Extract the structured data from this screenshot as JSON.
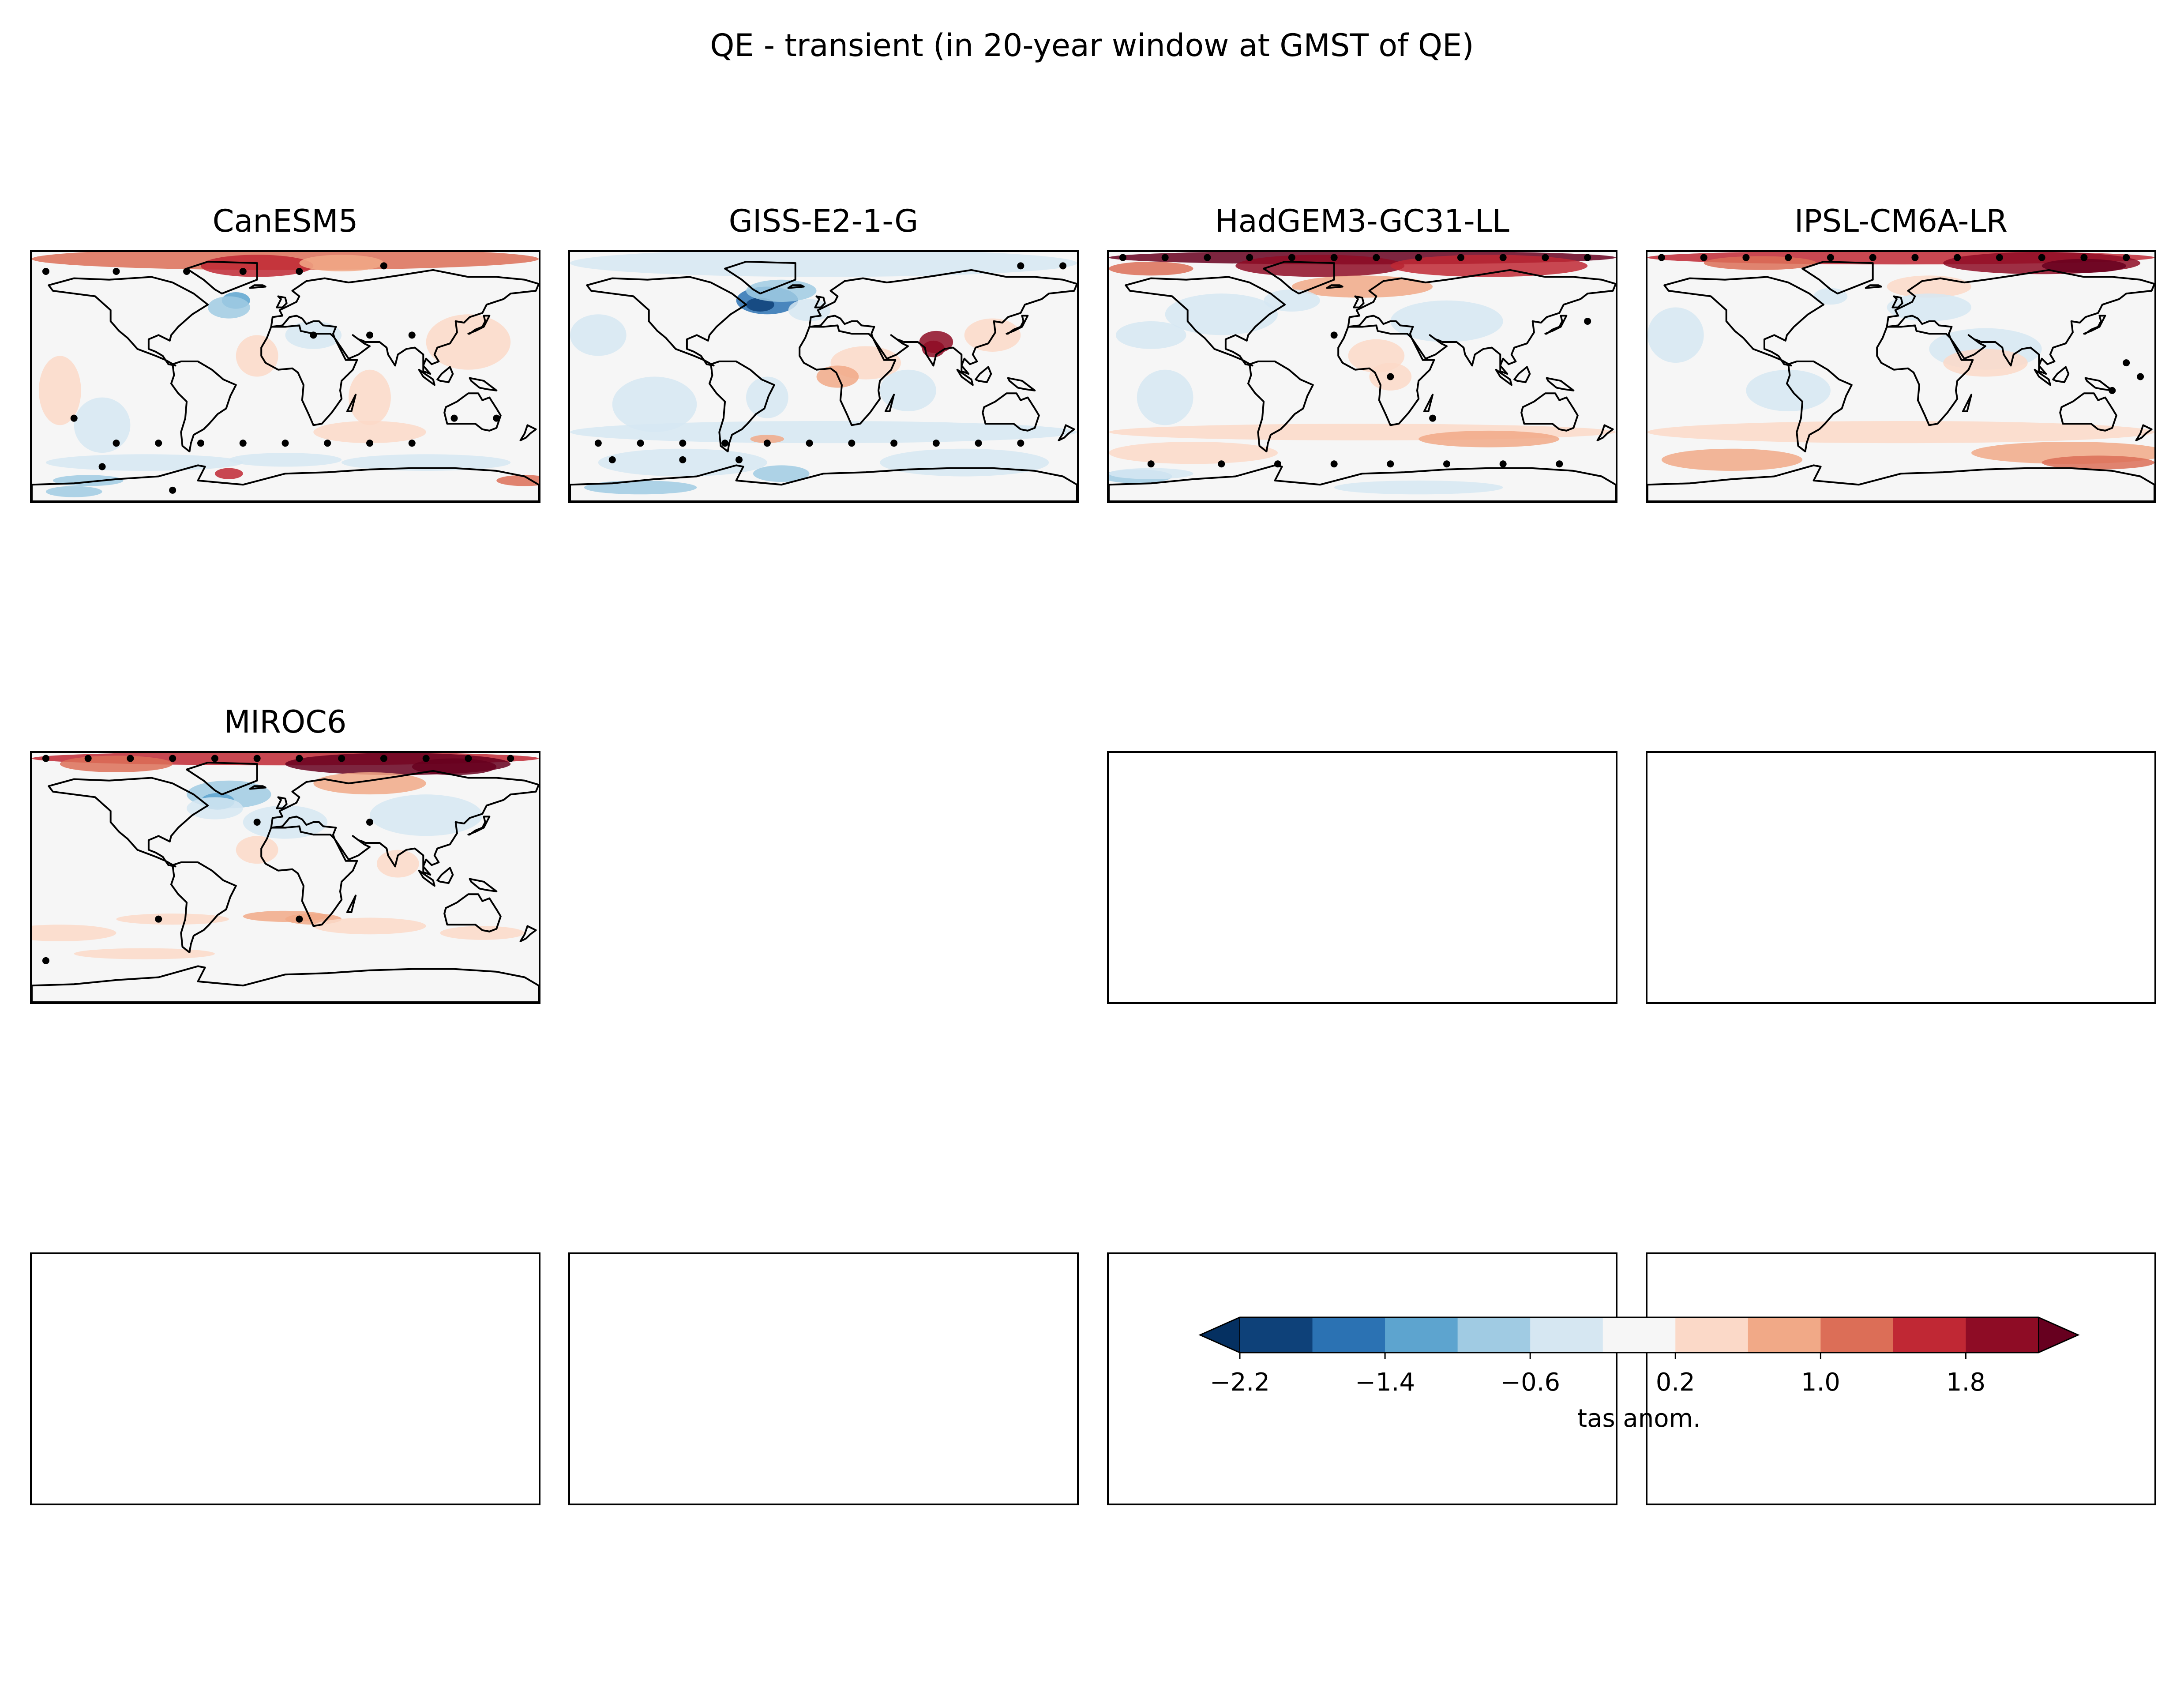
{
  "figure": {
    "suptitle": "QE - transient (in 20-year window at GMST of QE)"
  },
  "chart_data": {
    "type": "heatmap",
    "title": "QE - transient (in 20-year window at GMST of QE)",
    "variable_label": "tas anom.",
    "colormap": "RdBu_r",
    "levels": [
      -2.2,
      -1.8,
      -1.4,
      -1.0,
      -0.6,
      -0.2,
      0.2,
      0.6,
      1.0,
      1.4,
      1.8,
      2.2
    ],
    "level_colors": [
      "#0e4179",
      "#2b72b3",
      "#5da4cf",
      "#a0cbe3",
      "#d6e7f2",
      "#f6f6f6",
      "#fbd9c8",
      "#f1a987",
      "#dc6e57",
      "#c02834",
      "#8e0c25"
    ],
    "extend": "both",
    "under_color": "#053061",
    "over_color": "#67001f",
    "colorbar_ticks": [
      -2.2,
      -1.4,
      -0.6,
      0.2,
      1.0,
      1.8
    ],
    "colorbar_tick_labels": [
      "−2.2",
      "−1.4",
      "−0.6",
      "0.2",
      "1.0",
      "1.8"
    ],
    "stippling": "black dots mark significant grid points",
    "panels": [
      {
        "model": "CanESM5",
        "arctic_anomaly": 1.2,
        "southern_ocean_anomaly": -0.4,
        "north_atlantic_anomaly": -0.5,
        "tropics_anomaly": 0.1
      },
      {
        "model": "GISS-E2-1-G",
        "arctic_anomaly": -0.4,
        "southern_ocean_anomaly": -0.5,
        "north_atlantic_anomaly": -2.0,
        "south_asia_anomaly": 1.8
      },
      {
        "model": "HadGEM3-GC31-LL",
        "arctic_anomaly": 2.2,
        "southern_ocean_anomaly": 0.4,
        "north_atlantic_anomaly": 0.6,
        "tropics_anomaly": -0.2
      },
      {
        "model": "IPSL-CM6A-LR",
        "arctic_anomaly": 1.9,
        "southern_ocean_anomaly": 1.0,
        "north_atlantic_anomaly": 0.3,
        "tropics_anomaly": -0.2
      },
      {
        "model": "MIROC6",
        "arctic_anomaly": 2.2,
        "southern_ocean_anomaly": 0.3,
        "north_atlantic_anomaly": -1.1,
        "tropics_anomaly": 0.2
      }
    ],
    "empty_panels": 7
  }
}
